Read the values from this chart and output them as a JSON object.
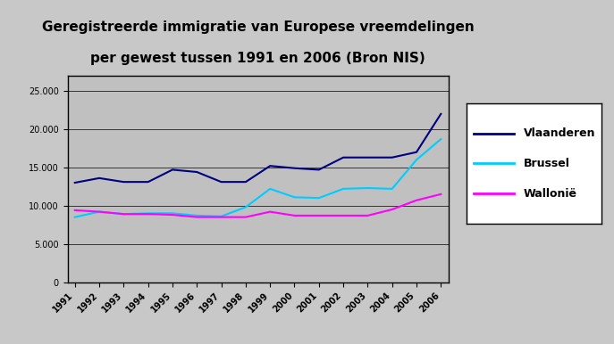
{
  "title_line1": "Geregistreerde immigratie van Europese vreemdelingen",
  "title_line2": "per gewest tussen 1991 en 2006 (Bron NIS)",
  "years": [
    1991,
    1992,
    1993,
    1994,
    1995,
    1996,
    1997,
    1998,
    1999,
    2000,
    2001,
    2002,
    2003,
    2004,
    2005,
    2006
  ],
  "vlaanderen": [
    13000,
    13600,
    13100,
    13100,
    14700,
    14400,
    13100,
    13100,
    15200,
    14900,
    14700,
    16300,
    16300,
    16300,
    17000,
    22000
  ],
  "brussel": [
    8500,
    9200,
    8900,
    9000,
    9000,
    8700,
    8600,
    9800,
    12200,
    11100,
    11000,
    12200,
    12300,
    12200,
    16000,
    18700
  ],
  "wallonie": [
    9400,
    9200,
    8900,
    8900,
    8800,
    8500,
    8500,
    8500,
    9200,
    8700,
    8700,
    8700,
    8700,
    9500,
    10700,
    11500
  ],
  "vlaanderen_color": "#000080",
  "brussel_color": "#00CCFF",
  "wallonie_color": "#FF00FF",
  "ylim": [
    0,
    27000
  ],
  "yticks": [
    0,
    5000,
    10000,
    15000,
    20000,
    25000
  ],
  "plot_facecolor": "#C0C0C0",
  "fig_facecolor": "#C8C8C8",
  "title_fontsize": 11,
  "legend_labels": [
    "Vlaanderen",
    "Brussel",
    "Wallonië"
  ]
}
